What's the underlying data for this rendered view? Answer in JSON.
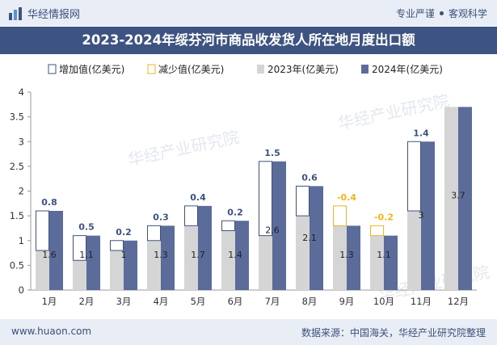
{
  "header": {
    "brand": "华经情报网",
    "tag1": "专业严谨",
    "tag2": "客观科学"
  },
  "title": "2023-2024年绥芬河市商品收发货人所在地月度出口额",
  "footer": {
    "site": "www.huaon.com",
    "source": "数据来源：中国海关，华经产业研究院整理"
  },
  "watermark": "华经产业研究院",
  "colors": {
    "s2023": "#d5d5d5",
    "s2024": "#5b6c9b",
    "increase": "#3d5381",
    "decrease": "#f2b51c",
    "header_bg": "#3d5381"
  },
  "chart_data": {
    "type": "bar",
    "categories": [
      "1月",
      "2月",
      "3月",
      "4月",
      "5月",
      "6月",
      "7月",
      "8月",
      "9月",
      "10月",
      "11月",
      "12月"
    ],
    "legend": [
      "增加值(亿美元)",
      "减少值(亿美元)",
      "2023年(亿美元)",
      "2024年(亿美元)"
    ],
    "series": [
      {
        "name": "2023年(亿美元)",
        "values": [
          0.8,
          0.6,
          0.8,
          1.0,
          1.3,
          1.2,
          1.1,
          1.5,
          1.7,
          1.3,
          1.6,
          3.7
        ]
      },
      {
        "name": "2024年(亿美元)",
        "values": [
          1.6,
          1.1,
          1.0,
          1.3,
          1.7,
          1.4,
          2.6,
          2.1,
          1.3,
          1.1,
          3.0,
          3.7
        ]
      }
    ],
    "change_labels": [
      "0.8",
      "0.5",
      "0.2",
      "0.3",
      "0.4",
      "0.2",
      "1.5",
      "0.6",
      "-0.4",
      "-0.2",
      "1.4",
      ""
    ],
    "value_labels_2024": [
      "1.6",
      "1.1",
      "1",
      "1.3",
      "1.7",
      "1.4",
      "2.6",
      "2.1",
      "1.3",
      "1.1",
      "3",
      "3.7"
    ],
    "ylim": [
      0,
      4
    ],
    "yticks": [
      "0",
      "0.5",
      "1",
      "1.5",
      "2",
      "2.5",
      "3",
      "3.5",
      "4"
    ],
    "legend_position": "top"
  }
}
